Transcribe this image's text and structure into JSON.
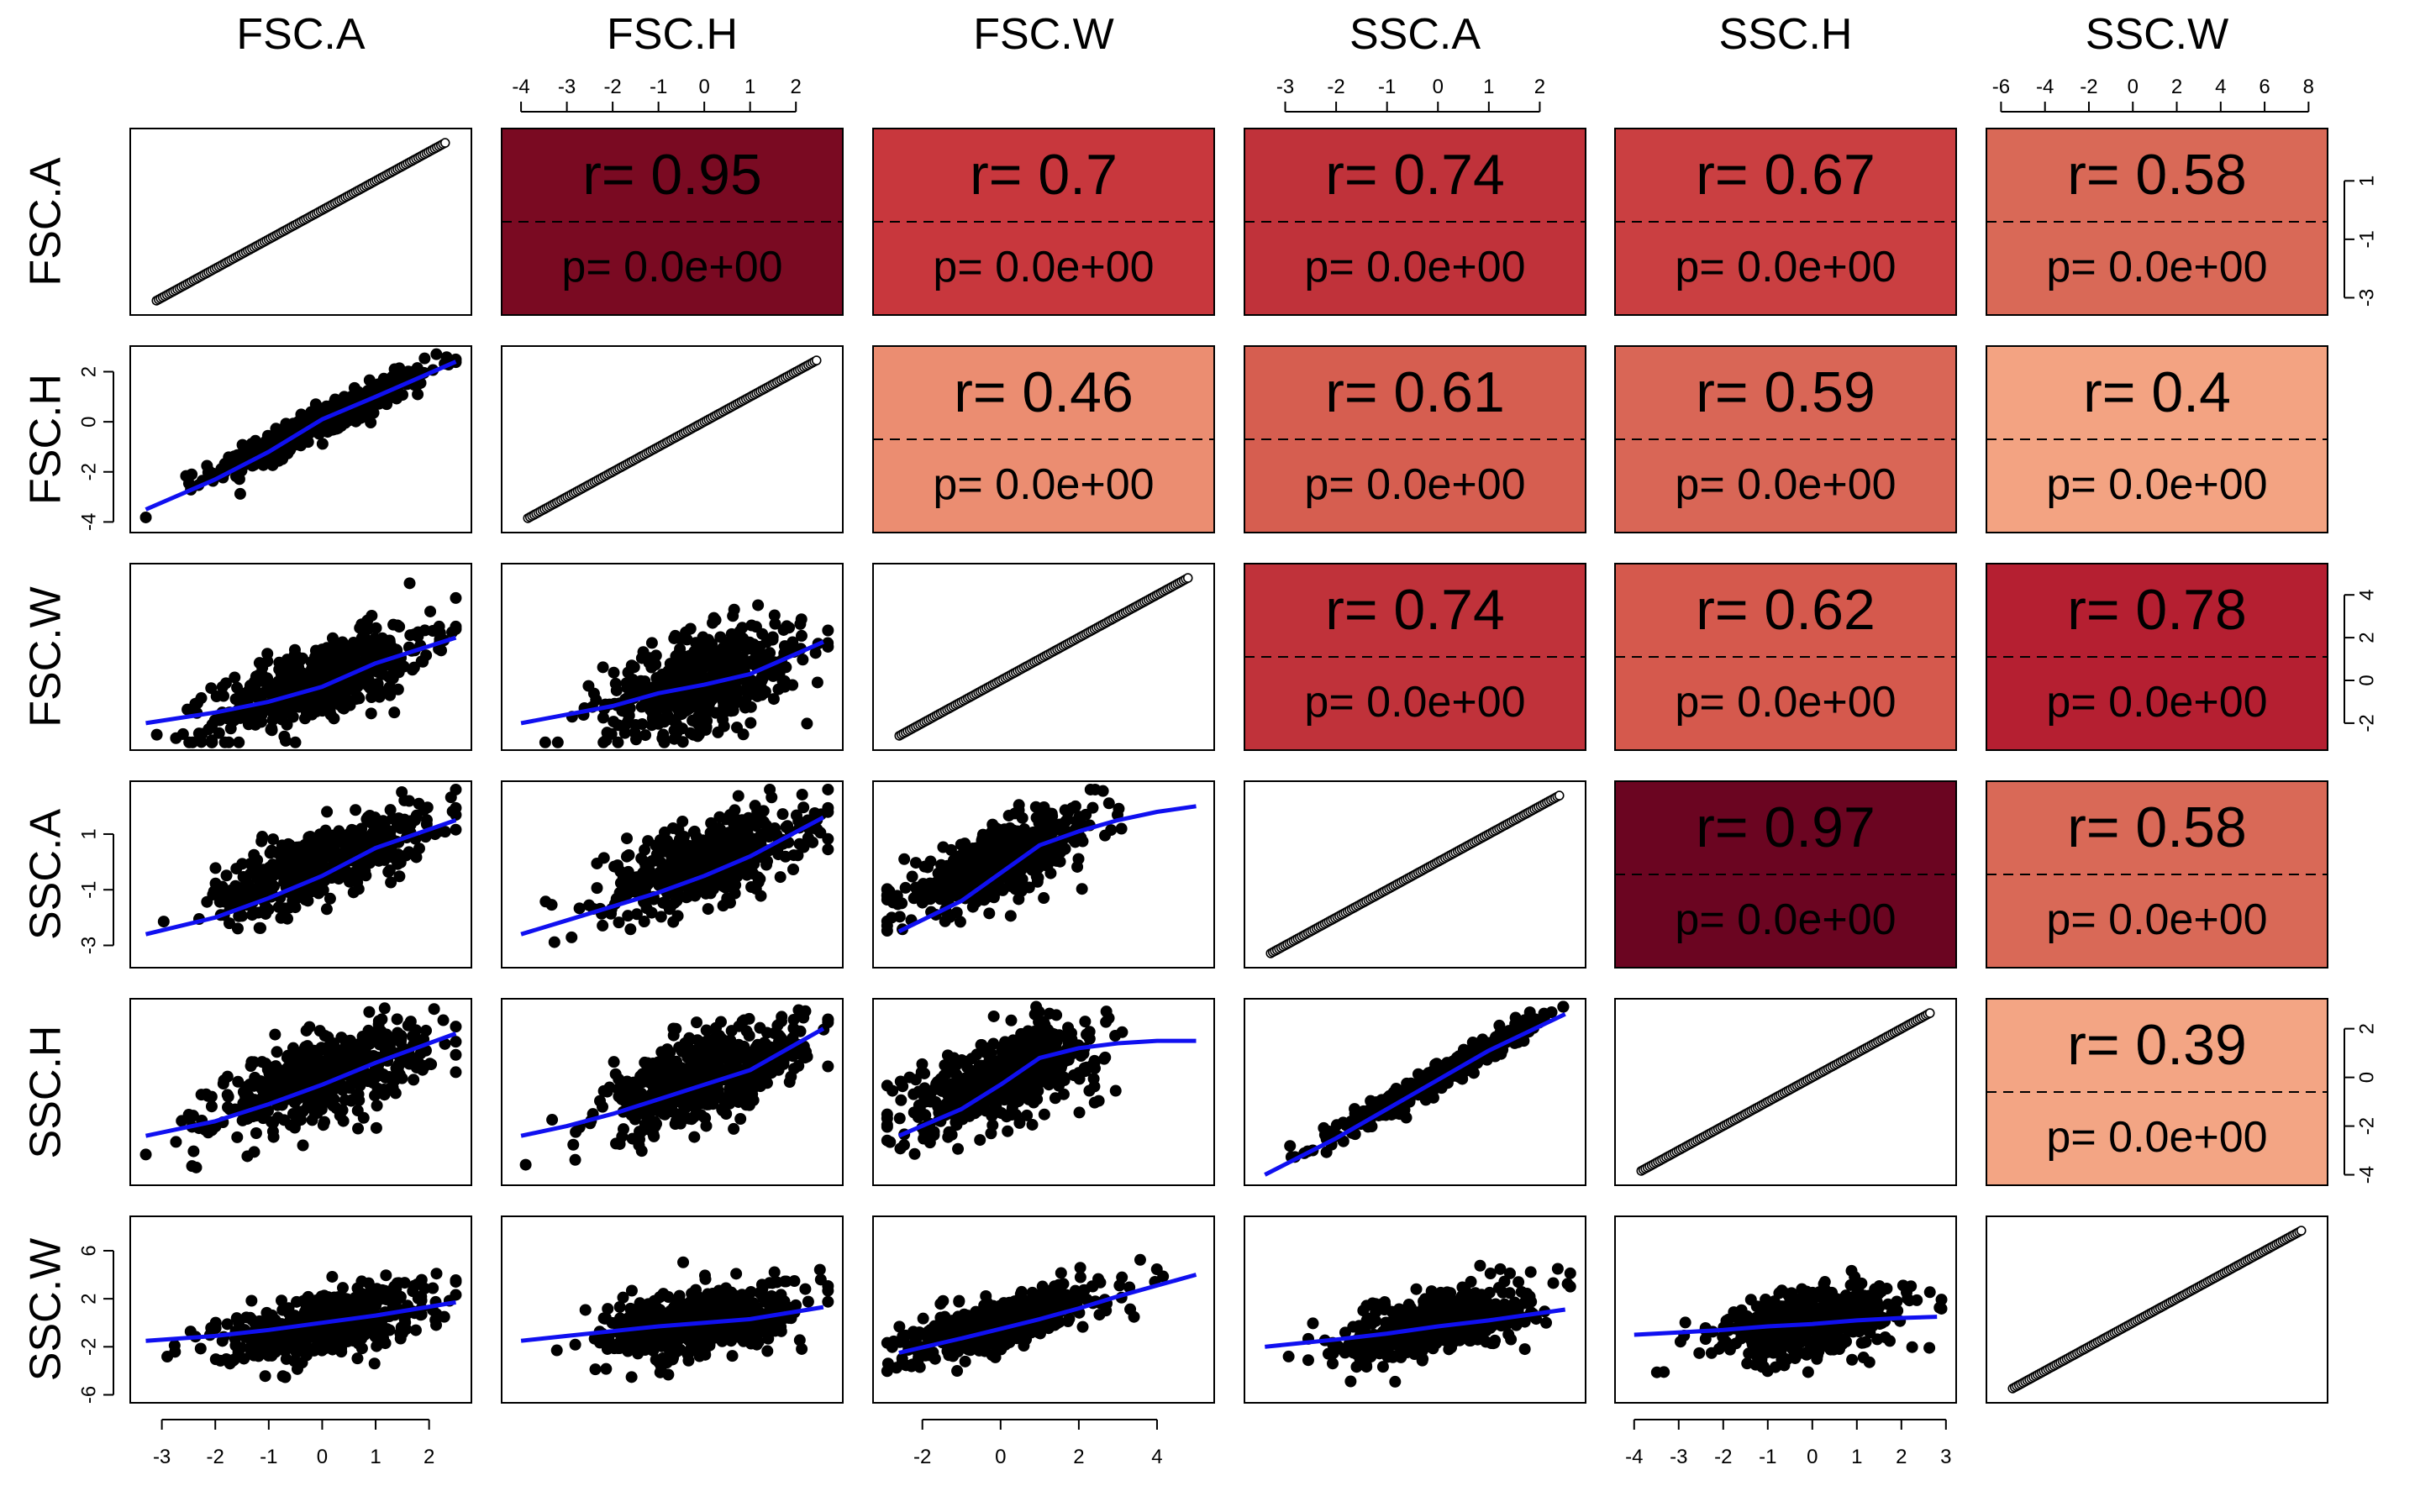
{
  "chart_data": {
    "type": "scatter-matrix",
    "variables": [
      "FSC.A",
      "FSC.H",
      "FSC.W",
      "SSC.A",
      "SSC.H",
      "SSC.W"
    ],
    "ranges": {
      "FSC.A": [
        -3.4,
        2.6
      ],
      "FSC.H": [
        -4.2,
        2.8
      ],
      "FSC.W": [
        -3.0,
        5.2
      ],
      "SSC.A": [
        -3.6,
        2.7
      ],
      "SSC.H": [
        -4.2,
        3.0
      ],
      "SSC.W": [
        -6.2,
        8.4
      ]
    },
    "ticks": {
      "FSC.A": [
        -3,
        -2,
        -1,
        0,
        1,
        2
      ],
      "FSC.H": [
        -4,
        -3,
        -2,
        -1,
        0,
        1,
        2
      ],
      "FSC.W": [
        -2,
        0,
        2,
        4
      ],
      "SSC.A": [
        -3,
        -2,
        -1,
        0,
        1,
        2
      ],
      "SSC.H": [
        -4,
        -3,
        -2,
        -1,
        0,
        1,
        2,
        3
      ],
      "SSC.W": [
        -6,
        -4,
        -2,
        0,
        2,
        4,
        6,
        8
      ]
    },
    "left_ticks": {
      "FSC.H": [
        -4,
        -2,
        0,
        2
      ],
      "SSC.A": [
        -3,
        -1,
        1
      ],
      "SSC.W": [
        -6,
        -2,
        2,
        6
      ]
    },
    "right_ticks": {
      "FSC.A": [
        -3,
        -1,
        1
      ],
      "FSC.W": [
        -2,
        0,
        2,
        4
      ],
      "SSC.H": [
        -4,
        -2,
        0,
        2
      ]
    },
    "correlations": [
      {
        "row": "FSC.A",
        "col": "FSC.H",
        "r_label": "r= 0.95",
        "p_label": "p= 0.0e+00",
        "color": "#7a0a22"
      },
      {
        "row": "FSC.A",
        "col": "FSC.W",
        "r_label": "r= 0.7",
        "p_label": "p= 0.0e+00",
        "color": "#c8373d"
      },
      {
        "row": "FSC.A",
        "col": "SSC.A",
        "r_label": "r= 0.74",
        "p_label": "p= 0.0e+00",
        "color": "#c0323a"
      },
      {
        "row": "FSC.A",
        "col": "SSC.H",
        "r_label": "r= 0.67",
        "p_label": "p= 0.0e+00",
        "color": "#ca3f41"
      },
      {
        "row": "FSC.A",
        "col": "SSC.W",
        "r_label": "r= 0.58",
        "p_label": "p= 0.0e+00",
        "color": "#d96957"
      },
      {
        "row": "FSC.H",
        "col": "FSC.W",
        "r_label": "r= 0.46",
        "p_label": "p= 0.0e+00",
        "color": "#eb8d71"
      },
      {
        "row": "FSC.H",
        "col": "SSC.A",
        "r_label": "r= 0.61",
        "p_label": "p= 0.0e+00",
        "color": "#d65e50"
      },
      {
        "row": "FSC.H",
        "col": "SSC.H",
        "r_label": "r= 0.59",
        "p_label": "p= 0.0e+00",
        "color": "#d96656"
      },
      {
        "row": "FSC.H",
        "col": "SSC.W",
        "r_label": "r= 0.4",
        "p_label": "p= 0.0e+00",
        "color": "#f3a382"
      },
      {
        "row": "FSC.W",
        "col": "SSC.A",
        "r_label": "r= 0.74",
        "p_label": "p= 0.0e+00",
        "color": "#c0323a"
      },
      {
        "row": "FSC.W",
        "col": "SSC.H",
        "r_label": "r= 0.62",
        "p_label": "p= 0.0e+00",
        "color": "#d5594d"
      },
      {
        "row": "FSC.W",
        "col": "SSC.W",
        "r_label": "r= 0.78",
        "p_label": "p= 0.0e+00",
        "color": "#b51f31"
      },
      {
        "row": "SSC.A",
        "col": "SSC.H",
        "r_label": "r= 0.97",
        "p_label": "p= 0.0e+00",
        "color": "#6b0521"
      },
      {
        "row": "SSC.A",
        "col": "SSC.W",
        "r_label": "r= 0.58",
        "p_label": "p= 0.0e+00",
        "color": "#d96957"
      },
      {
        "row": "SSC.H",
        "col": "SSC.W",
        "r_label": "r= 0.39",
        "p_label": "p= 0.0e+00",
        "color": "#f3a584"
      }
    ],
    "smooth_lines": [
      {
        "row": "FSC.H",
        "col": "FSC.A",
        "x": [
          -3.3,
          -2,
          -1,
          0,
          1,
          2.5
        ],
        "y": [
          -3.5,
          -2.3,
          -1.2,
          0.1,
          1.0,
          2.4
        ]
      },
      {
        "row": "FSC.W",
        "col": "FSC.A",
        "x": [
          -3.3,
          -2,
          -1,
          0,
          1,
          2.5
        ],
        "y": [
          -2.0,
          -1.5,
          -1.0,
          -0.3,
          0.8,
          2.0
        ]
      },
      {
        "row": "FSC.W",
        "col": "FSC.H",
        "x": [
          -4.0,
          -3,
          -2,
          -1,
          0,
          1,
          2.6
        ],
        "y": [
          -2.0,
          -1.6,
          -1.2,
          -0.6,
          -0.2,
          0.3,
          1.8
        ]
      },
      {
        "row": "SSC.A",
        "col": "FSC.A",
        "x": [
          -3.3,
          -2,
          -1,
          0,
          1,
          2.5
        ],
        "y": [
          -2.6,
          -2.0,
          -1.3,
          -0.5,
          0.5,
          1.5
        ]
      },
      {
        "row": "SSC.A",
        "col": "FSC.H",
        "x": [
          -4.0,
          -3,
          -2,
          -1,
          0,
          1,
          2.6
        ],
        "y": [
          -2.6,
          -2.1,
          -1.6,
          -1.1,
          -0.5,
          0.2,
          1.6
        ]
      },
      {
        "row": "SSC.A",
        "col": "FSC.W",
        "x": [
          -2.6,
          -1,
          0,
          1,
          2,
          3,
          4,
          5
        ],
        "y": [
          -2.5,
          -1.4,
          -0.4,
          0.6,
          1.1,
          1.5,
          1.8,
          2.0
        ]
      },
      {
        "row": "SSC.H",
        "col": "FSC.A",
        "x": [
          -3.3,
          -2,
          -1,
          0,
          1,
          2.5
        ],
        "y": [
          -2.4,
          -1.8,
          -1.1,
          -0.3,
          0.6,
          1.8
        ]
      },
      {
        "row": "SSC.H",
        "col": "FSC.H",
        "x": [
          -4.0,
          -3,
          -2,
          -1,
          0,
          1,
          2.6
        ],
        "y": [
          -2.4,
          -2.0,
          -1.5,
          -0.9,
          -0.3,
          0.3,
          2.0
        ]
      },
      {
        "row": "SSC.H",
        "col": "FSC.W",
        "x": [
          -2.6,
          -1,
          0,
          1,
          2,
          3,
          4,
          5
        ],
        "y": [
          -2.4,
          -1.3,
          -0.3,
          0.8,
          1.2,
          1.4,
          1.5,
          1.5
        ]
      },
      {
        "row": "SSC.H",
        "col": "SSC.A",
        "x": [
          -3.4,
          -2,
          -1,
          0,
          1,
          2.5
        ],
        "y": [
          -4.0,
          -2.5,
          -1.3,
          -0.1,
          1.1,
          2.6
        ]
      },
      {
        "row": "SSC.W",
        "col": "FSC.A",
        "x": [
          -3.3,
          -2,
          -1,
          0,
          1,
          2.5
        ],
        "y": [
          -1.5,
          -1.1,
          -0.6,
          0.0,
          0.6,
          1.7
        ]
      },
      {
        "row": "SSC.W",
        "col": "FSC.H",
        "x": [
          -4.0,
          -3,
          -2,
          -1,
          0,
          1,
          2.6
        ],
        "y": [
          -1.5,
          -1.1,
          -0.7,
          -0.3,
          0.0,
          0.3,
          1.3
        ]
      },
      {
        "row": "SSC.W",
        "col": "FSC.W",
        "x": [
          -2.6,
          -1,
          0,
          1,
          2,
          3,
          4,
          5
        ],
        "y": [
          -2.5,
          -1.3,
          -0.5,
          0.3,
          1.2,
          2.2,
          3.1,
          4.0
        ]
      },
      {
        "row": "SSC.W",
        "col": "SSC.A",
        "x": [
          -3.4,
          -2,
          -1,
          0,
          1,
          2.5
        ],
        "y": [
          -2.0,
          -1.4,
          -0.9,
          -0.3,
          0.2,
          1.1
        ]
      },
      {
        "row": "SSC.W",
        "col": "SSC.H",
        "x": [
          -4.0,
          -3,
          -2,
          -1,
          0,
          1,
          2,
          2.8
        ],
        "y": [
          -1.0,
          -0.8,
          -0.6,
          -0.3,
          -0.1,
          0.2,
          0.4,
          0.5
        ]
      }
    ],
    "cloud_params": [
      {
        "row": "FSC.H",
        "col": "FSC.A",
        "sx": 1.1,
        "sy": 1.15,
        "rho": 0.95
      },
      {
        "row": "FSC.W",
        "col": "FSC.A",
        "sx": 1.1,
        "sy": 1.4,
        "rho": 0.7
      },
      {
        "row": "FSC.W",
        "col": "FSC.H",
        "sx": 1.2,
        "sy": 1.4,
        "rho": 0.46
      },
      {
        "row": "SSC.A",
        "col": "FSC.A",
        "sx": 1.1,
        "sy": 1.0,
        "rho": 0.74
      },
      {
        "row": "SSC.A",
        "col": "FSC.H",
        "sx": 1.2,
        "sy": 1.0,
        "rho": 0.61
      },
      {
        "row": "SSC.A",
        "col": "FSC.W",
        "sx": 1.4,
        "sy": 1.0,
        "rho": 0.74
      },
      {
        "row": "SSC.H",
        "col": "FSC.A",
        "sx": 1.1,
        "sy": 1.2,
        "rho": 0.67
      },
      {
        "row": "SSC.H",
        "col": "FSC.H",
        "sx": 1.2,
        "sy": 1.2,
        "rho": 0.59
      },
      {
        "row": "SSC.H",
        "col": "FSC.W",
        "sx": 1.4,
        "sy": 1.2,
        "rho": 0.62
      },
      {
        "row": "SSC.H",
        "col": "SSC.A",
        "sx": 1.0,
        "sy": 1.2,
        "rho": 0.97
      },
      {
        "row": "SSC.W",
        "col": "FSC.A",
        "sx": 1.1,
        "sy": 1.7,
        "rho": 0.58
      },
      {
        "row": "SSC.W",
        "col": "FSC.H",
        "sx": 1.2,
        "sy": 1.7,
        "rho": 0.4
      },
      {
        "row": "SSC.W",
        "col": "FSC.W",
        "sx": 1.4,
        "sy": 1.7,
        "rho": 0.78
      },
      {
        "row": "SSC.W",
        "col": "SSC.A",
        "sx": 1.0,
        "sy": 1.7,
        "rho": 0.58
      },
      {
        "row": "SSC.W",
        "col": "SSC.H",
        "sx": 1.2,
        "sy": 1.7,
        "rho": 0.39
      }
    ],
    "point_color": "#000000",
    "smooth_color": "#1010f0",
    "diagonal_marker": "open-circle"
  }
}
